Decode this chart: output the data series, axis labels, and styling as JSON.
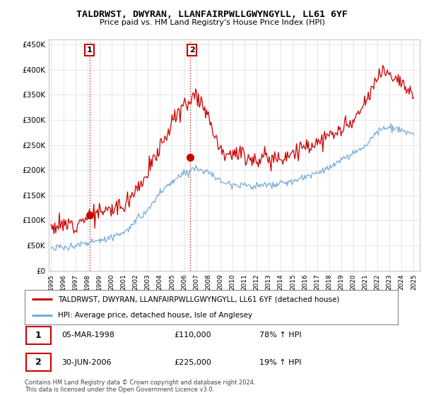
{
  "title": "TALDRWST, DWYRAN, LLANFAIRPWLLGWYNGYLL, LL61 6YF",
  "subtitle": "Price paid vs. HM Land Registry's House Price Index (HPI)",
  "ylabel_ticks": [
    0,
    50000,
    100000,
    150000,
    200000,
    250000,
    300000,
    350000,
    400000,
    450000
  ],
  "ylim": [
    0,
    460000
  ],
  "xlim_start": 1994.8,
  "xlim_end": 2025.5,
  "point1_x": 1998.17,
  "point1_y": 110000,
  "point2_x": 2006.5,
  "point2_y": 225000,
  "point1_date": "05-MAR-1998",
  "point1_price": "£110,000",
  "point1_hpi": "78% ↑ HPI",
  "point2_date": "30-JUN-2006",
  "point2_price": "£225,000",
  "point2_hpi": "19% ↑ HPI",
  "red_color": "#cc0000",
  "blue_color": "#7aacdc",
  "legend_red_label": "TALDRWST, DWYRAN, LLANFAIRPWLLGWYNGYLL, LL61 6YF (detached house)",
  "legend_blue_label": "HPI: Average price, detached house, Isle of Anglesey",
  "copyright_text": "Contains HM Land Registry data © Crown copyright and database right 2024.\nThis data is licensed under the Open Government Licence v3.0.",
  "background_color": "#ffffff",
  "grid_color": "#dddddd"
}
